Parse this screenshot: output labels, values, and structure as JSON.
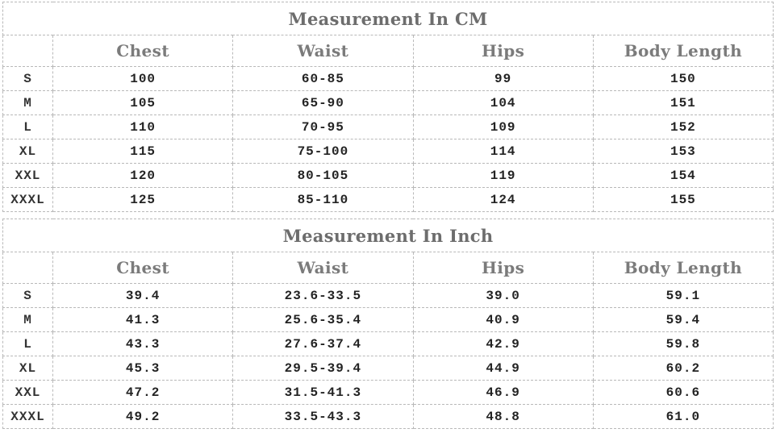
{
  "colors": {
    "background": "#ffffff",
    "border": "#b9b9b9",
    "title_text": "#6d6d6d",
    "header_text": "#7b7b7b",
    "data_text": "#232323"
  },
  "tables": [
    {
      "title": "Measurement In CM",
      "columns": [
        "",
        "Chest",
        "Waist",
        "Hips",
        "Body Length"
      ],
      "rows": [
        {
          "size": "S",
          "chest": "100",
          "waist": "60-85",
          "hips": "99",
          "body_length": "150"
        },
        {
          "size": "M",
          "chest": "105",
          "waist": "65-90",
          "hips": "104",
          "body_length": "151"
        },
        {
          "size": "L",
          "chest": "110",
          "waist": "70-95",
          "hips": "109",
          "body_length": "152"
        },
        {
          "size": "XL",
          "chest": "115",
          "waist": "75-100",
          "hips": "114",
          "body_length": "153"
        },
        {
          "size": "XXL",
          "chest": "120",
          "waist": "80-105",
          "hips": "119",
          "body_length": "154"
        },
        {
          "size": "XXXL",
          "chest": "125",
          "waist": "85-110",
          "hips": "124",
          "body_length": "155"
        }
      ]
    },
    {
      "title": "Measurement In Inch",
      "columns": [
        "",
        "Chest",
        "Waist",
        "Hips",
        "Body Length"
      ],
      "rows": [
        {
          "size": "S",
          "chest": "39.4",
          "waist": "23.6-33.5",
          "hips": "39.0",
          "body_length": "59.1"
        },
        {
          "size": "M",
          "chest": "41.3",
          "waist": "25.6-35.4",
          "hips": "40.9",
          "body_length": "59.4"
        },
        {
          "size": "L",
          "chest": "43.3",
          "waist": "27.6-37.4",
          "hips": "42.9",
          "body_length": "59.8"
        },
        {
          "size": "XL",
          "chest": "45.3",
          "waist": "29.5-39.4",
          "hips": "44.9",
          "body_length": "60.2"
        },
        {
          "size": "XXL",
          "chest": "47.2",
          "waist": "31.5-41.3",
          "hips": "46.9",
          "body_length": "60.6"
        },
        {
          "size": "XXXL",
          "chest": "49.2",
          "waist": "33.5-43.3",
          "hips": "48.8",
          "body_length": "61.0"
        }
      ]
    }
  ]
}
